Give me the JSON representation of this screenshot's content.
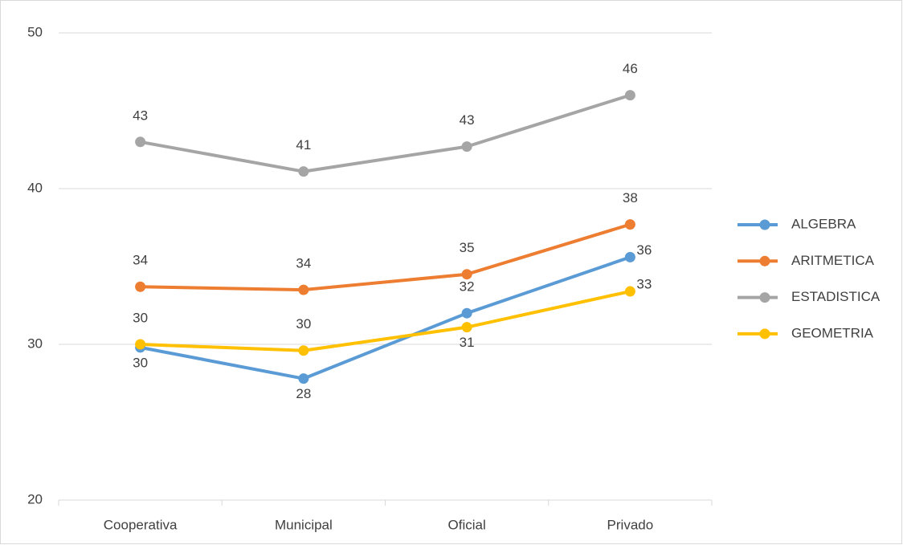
{
  "chart_data": {
    "type": "line",
    "categories": [
      "Cooperativa",
      "Municipal",
      "Oficial",
      "Privado"
    ],
    "series": [
      {
        "name": "ALGEBRA",
        "color": "#5b9bd5",
        "values": [
          29.8,
          27.8,
          32.0,
          35.6
        ],
        "value_labels": [
          "30",
          "28",
          "32",
          "36"
        ]
      },
      {
        "name": "ARITMETICA",
        "color": "#ed7d31",
        "values": [
          33.7,
          33.5,
          34.5,
          37.7
        ],
        "value_labels": [
          "34",
          "34",
          "35",
          "38"
        ]
      },
      {
        "name": "ESTADISTICA",
        "color": "#a5a5a5",
        "values": [
          43.0,
          41.1,
          42.7,
          46.0
        ],
        "value_labels": [
          "43",
          "41",
          "43",
          "46"
        ]
      },
      {
        "name": "GEOMETRIA",
        "color": "#ffc000",
        "values": [
          30.0,
          29.6,
          31.1,
          33.4
        ],
        "value_labels": [
          "30",
          "30",
          "31",
          "33"
        ]
      }
    ],
    "ylim": [
      20,
      50
    ],
    "yticks": [
      20,
      30,
      40,
      50
    ],
    "grid": true,
    "legend": "right"
  }
}
